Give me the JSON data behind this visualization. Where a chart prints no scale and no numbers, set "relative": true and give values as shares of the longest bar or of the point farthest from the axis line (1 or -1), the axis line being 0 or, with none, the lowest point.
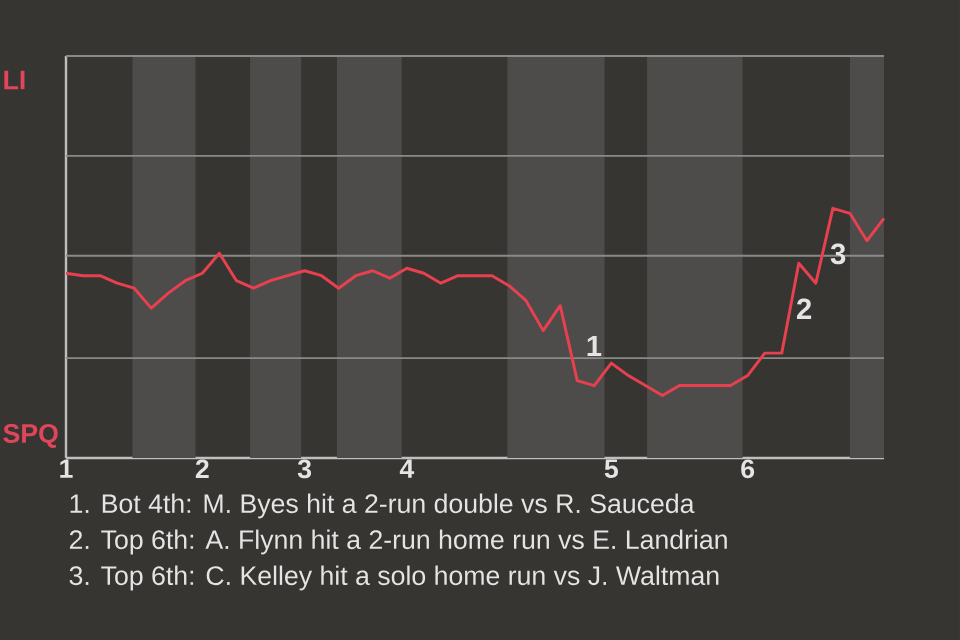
{
  "chart_data": {
    "type": "line",
    "relative": true,
    "categories": [
      "1",
      null,
      null,
      null,
      null,
      null,
      null,
      null,
      "2",
      null,
      null,
      null,
      null,
      null,
      "3",
      null,
      null,
      null,
      null,
      null,
      "4",
      null,
      null,
      null,
      null,
      null,
      null,
      null,
      null,
      null,
      null,
      null,
      "5",
      null,
      null,
      null,
      null,
      null,
      null,
      null,
      "6",
      null,
      null,
      null,
      null,
      null,
      null,
      null,
      null
    ],
    "series": [
      {
        "color": "#e8404f",
        "values": [
          0.74,
          0.73,
          0.73,
          0.7,
          0.68,
          0.6,
          0.66,
          0.71,
          0.74,
          0.82,
          0.71,
          0.68,
          0.71,
          0.73,
          0.75,
          0.73,
          0.68,
          0.73,
          0.75,
          0.72,
          0.76,
          0.74,
          0.7,
          0.73,
          0.73,
          0.73,
          0.69,
          0.63,
          0.51,
          0.61,
          0.31,
          0.29,
          0.38,
          0.33,
          0.29,
          0.25,
          0.29,
          0.29,
          0.29,
          0.29,
          0.33,
          0.42,
          0.42,
          0.78,
          0.7,
          1,
          0.98,
          0.87,
          0.96
        ]
      }
    ],
    "ref_lines": [
      {
        "axis": "y",
        "value": 0.4,
        "color": "#8a8a8a"
      },
      {
        "axis": "y",
        "value": 0.81,
        "color": "#8a8a8a"
      },
      {
        "axis": "y",
        "value": 1.21,
        "color": "#8a8a8a"
      },
      {
        "axis": "y",
        "value": 1.61,
        "color": "#8a8a8a"
      }
    ],
    "annotations": [
      "LI",
      "SPQ",
      {
        "text": "1",
        "y": 0.31
      },
      {
        "text": "2",
        "y": 0.78
      },
      {
        "text": "3",
        "y": 1
      },
      "1. Bot 4th: M. Byes hit a 2-run double vs R. Sauceda",
      "2. Top 6th: A. Flynn hit a 2-run home run vs E. Landrian",
      "3. Top 6th: C. Kelley hit a solo home run vs J. Waltman"
    ]
  }
}
